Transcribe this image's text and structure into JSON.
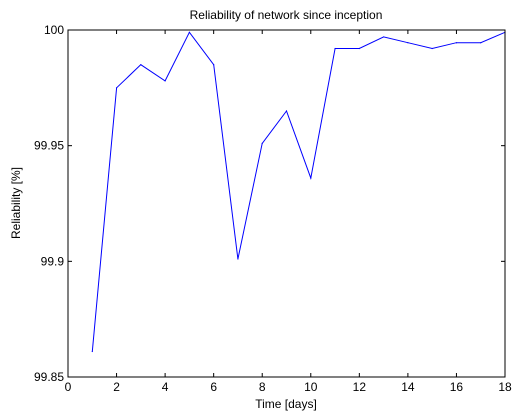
{
  "chart_data": {
    "type": "line",
    "title": "Reliability of network since inception",
    "xlabel": "Time [days]",
    "ylabel": "Reliability [%]",
    "xlim": [
      0,
      18
    ],
    "ylim": [
      99.85,
      100
    ],
    "xticks": [
      0,
      2,
      4,
      6,
      8,
      10,
      12,
      14,
      16,
      18
    ],
    "yticks": [
      99.85,
      99.9,
      99.95,
      100
    ],
    "ytick_labels": [
      "99.85",
      "99.9",
      "99.95",
      "100"
    ],
    "grid": false,
    "line_color": "#0000ff",
    "series": [
      {
        "x": [
          1,
          2,
          3,
          4,
          5,
          6,
          7,
          8,
          9,
          10,
          11,
          12,
          13,
          14,
          15,
          16,
          17,
          18
        ],
        "y": [
          99.861,
          99.975,
          99.985,
          99.978,
          99.999,
          99.985,
          99.901,
          99.951,
          99.965,
          99.936,
          99.992,
          99.992,
          99.997,
          99.9945,
          99.992,
          99.9945,
          99.9945,
          99.999
        ]
      }
    ]
  }
}
